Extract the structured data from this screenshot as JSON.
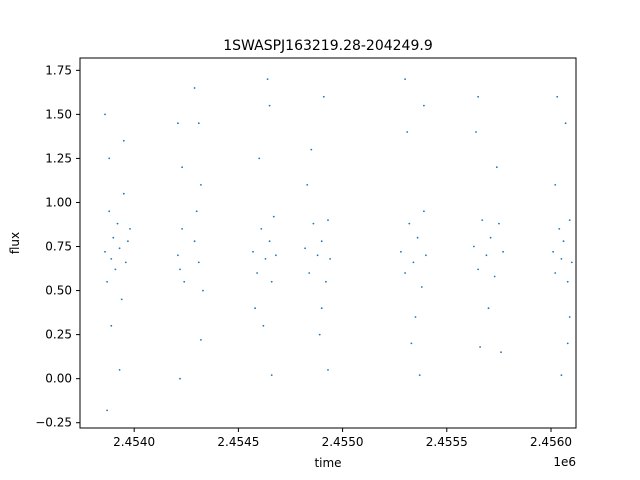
{
  "chart_data": {
    "type": "scatter",
    "title": "1SWASPJ163219.28-204249.9",
    "xlabel": "time",
    "ylabel": "flux",
    "x_offset_label": "1e6",
    "x_units": "time / 1e6",
    "xlim": [
      2.45374,
      2.45612
    ],
    "ylim": [
      -0.28,
      1.82
    ],
    "xticks": [
      2.454,
      2.4545,
      2.455,
      2.4555,
      2.456
    ],
    "xtick_labels": [
      "2.4540",
      "2.4545",
      "2.4550",
      "2.4555",
      "2.4560"
    ],
    "yticks": [
      -0.25,
      0.0,
      0.25,
      0.5,
      0.75,
      1.0,
      1.25,
      1.5,
      1.75
    ],
    "ytick_labels": [
      "−0.25",
      "0.00",
      "0.25",
      "0.50",
      "0.75",
      "1.00",
      "1.25",
      "1.50",
      "1.75"
    ],
    "grid": false,
    "marker_color": "#1f77b4",
    "series": [
      {
        "points": [
          [
            2.45386,
            0.72
          ],
          [
            2.45387,
            0.55
          ],
          [
            2.45388,
            0.95
          ],
          [
            2.45389,
            0.68
          ],
          [
            2.4539,
            0.8
          ],
          [
            2.45391,
            0.62
          ],
          [
            2.45392,
            0.88
          ],
          [
            2.45393,
            0.74
          ],
          [
            2.45394,
            0.45
          ],
          [
            2.45395,
            1.05
          ],
          [
            2.45396,
            0.66
          ],
          [
            2.45397,
            0.78
          ],
          [
            2.45388,
            1.25
          ],
          [
            2.45389,
            0.3
          ],
          [
            2.45393,
            0.05
          ],
          [
            2.45395,
            1.35
          ],
          [
            2.45387,
            -0.18
          ],
          [
            2.45386,
            1.5
          ],
          [
            2.45398,
            0.85
          ],
          [
            2.45421,
            0.7
          ],
          [
            2.45422,
            0.62
          ],
          [
            2.45423,
            0.85
          ],
          [
            2.45424,
            0.55
          ],
          [
            2.45421,
            1.45
          ],
          [
            2.45422,
            0.0
          ],
          [
            2.45423,
            1.2
          ],
          [
            2.45429,
            0.78
          ],
          [
            2.4543,
            0.95
          ],
          [
            2.45431,
            0.66
          ],
          [
            2.45432,
            1.1
          ],
          [
            2.45433,
            0.5
          ],
          [
            2.45429,
            1.65
          ],
          [
            2.45432,
            0.22
          ],
          [
            2.45431,
            1.45
          ],
          [
            2.45457,
            0.72
          ],
          [
            2.45459,
            0.6
          ],
          [
            2.45461,
            0.85
          ],
          [
            2.45463,
            0.68
          ],
          [
            2.45465,
            0.78
          ],
          [
            2.45466,
            0.55
          ],
          [
            2.45467,
            0.92
          ],
          [
            2.45468,
            0.7
          ],
          [
            2.4546,
            1.25
          ],
          [
            2.45462,
            0.3
          ],
          [
            2.45464,
            1.7
          ],
          [
            2.45466,
            0.02
          ],
          [
            2.45465,
            1.55
          ],
          [
            2.45458,
            0.4
          ],
          [
            2.45482,
            0.74
          ],
          [
            2.45484,
            0.6
          ],
          [
            2.45486,
            0.88
          ],
          [
            2.45488,
            0.7
          ],
          [
            2.4549,
            0.78
          ],
          [
            2.45492,
            0.55
          ],
          [
            2.45493,
            0.9
          ],
          [
            2.45494,
            0.68
          ],
          [
            2.45485,
            1.3
          ],
          [
            2.45489,
            0.25
          ],
          [
            2.45491,
            1.6
          ],
          [
            2.45493,
            0.05
          ],
          [
            2.45483,
            1.1
          ],
          [
            2.4549,
            0.4
          ],
          [
            2.45528,
            0.72
          ],
          [
            2.4553,
            0.6
          ],
          [
            2.45532,
            0.88
          ],
          [
            2.45534,
            0.66
          ],
          [
            2.45536,
            0.8
          ],
          [
            2.45538,
            0.52
          ],
          [
            2.45539,
            0.95
          ],
          [
            2.4554,
            0.7
          ],
          [
            2.45531,
            1.4
          ],
          [
            2.45533,
            0.2
          ],
          [
            2.4553,
            1.7
          ],
          [
            2.45537,
            0.02
          ],
          [
            2.45539,
            1.55
          ],
          [
            2.45535,
            0.35
          ],
          [
            2.45563,
            0.75
          ],
          [
            2.45565,
            0.62
          ],
          [
            2.45567,
            0.9
          ],
          [
            2.45569,
            0.7
          ],
          [
            2.45571,
            0.8
          ],
          [
            2.45573,
            0.58
          ],
          [
            2.45575,
            0.88
          ],
          [
            2.45577,
            0.72
          ],
          [
            2.45565,
            1.6
          ],
          [
            2.45566,
            0.18
          ],
          [
            2.45574,
            1.2
          ],
          [
            2.45576,
            0.15
          ],
          [
            2.45564,
            1.4
          ],
          [
            2.4557,
            0.4
          ],
          [
            2.45601,
            0.72
          ],
          [
            2.45602,
            0.6
          ],
          [
            2.45604,
            0.85
          ],
          [
            2.45605,
            0.68
          ],
          [
            2.45606,
            0.78
          ],
          [
            2.45608,
            0.55
          ],
          [
            2.45609,
            0.9
          ],
          [
            2.4561,
            0.66
          ],
          [
            2.45603,
            1.6
          ],
          [
            2.45605,
            0.02
          ],
          [
            2.45607,
            1.45
          ],
          [
            2.45608,
            0.2
          ],
          [
            2.45602,
            1.1
          ],
          [
            2.45609,
            0.35
          ]
        ]
      }
    ]
  }
}
